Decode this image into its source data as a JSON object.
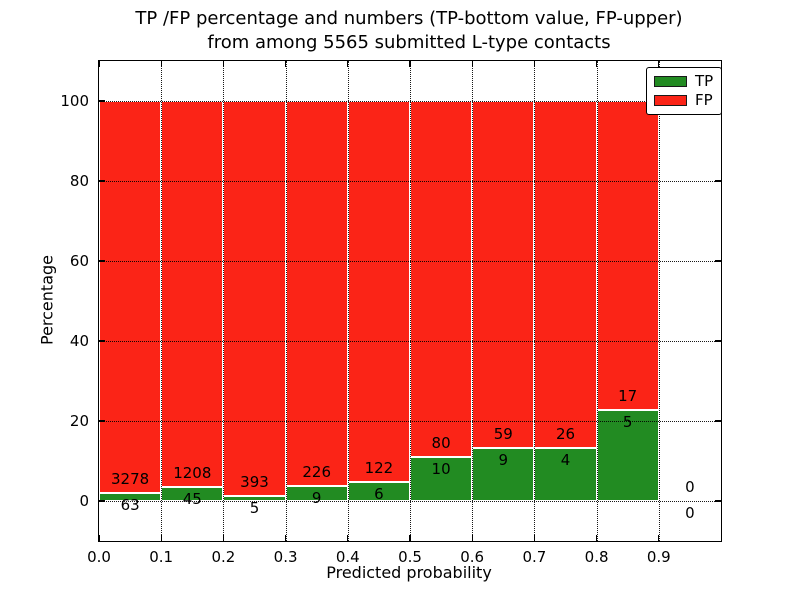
{
  "figure": {
    "title_line1": "TP /FP percentage and numbers (TP-bottom value, FP-upper)",
    "title_line2": "from among 5565 submitted L-type contacts",
    "xlabel": "Predicted probability",
    "ylabel": "Percentage",
    "colors": {
      "tp": "#228b22",
      "fp": "#fb2417",
      "grid": "#000000",
      "frame": "#000000",
      "background": "#ffffff"
    }
  },
  "chart_data": {
    "type": "bar",
    "stacked": true,
    "title": "TP /FP percentage and numbers (TP-bottom value, FP-upper) from among 5565 submitted L-type contacts",
    "total_contacts": 5565,
    "xlabel": "Predicted probability",
    "ylabel": "Percentage",
    "xlim": [
      0.0,
      1.0
    ],
    "ylim": [
      -10,
      110
    ],
    "xticks": [
      "0.0",
      "0.1",
      "0.2",
      "0.3",
      "0.4",
      "0.5",
      "0.6",
      "0.7",
      "0.8",
      "0.9"
    ],
    "yticks": [
      0,
      20,
      40,
      60,
      80,
      100
    ],
    "grid": "dotted",
    "legend_position": "upper right",
    "legend": [
      {
        "label": "TP",
        "color": "#228b22"
      },
      {
        "label": "FP",
        "color": "#fb2417"
      }
    ],
    "categories": [
      "0.0-0.1",
      "0.1-0.2",
      "0.2-0.3",
      "0.3-0.4",
      "0.4-0.5",
      "0.5-0.6",
      "0.6-0.7",
      "0.7-0.8",
      "0.8-0.9",
      "0.9-1.0"
    ],
    "series": [
      {
        "name": "TP",
        "color": "#228b22",
        "counts": [
          63,
          45,
          5,
          9,
          6,
          10,
          9,
          4,
          5,
          0
        ],
        "percent": [
          1.89,
          3.59,
          1.26,
          3.83,
          4.69,
          11.11,
          13.24,
          13.33,
          22.73,
          0
        ]
      },
      {
        "name": "FP",
        "color": "#fb2417",
        "counts": [
          3278,
          1208,
          393,
          226,
          122,
          80,
          59,
          26,
          17,
          0
        ],
        "percent": [
          98.11,
          96.41,
          98.74,
          96.17,
          95.31,
          88.89,
          86.76,
          86.67,
          77.27,
          0
        ]
      }
    ],
    "bins": [
      {
        "range": "0.0-0.1",
        "x0": 0.0,
        "x1": 0.1,
        "tp": "63",
        "fp": "3278",
        "tp_pct": 1.89
      },
      {
        "range": "0.1-0.2",
        "x0": 0.1,
        "x1": 0.2,
        "tp": "45",
        "fp": "1208",
        "tp_pct": 3.59
      },
      {
        "range": "0.2-0.3",
        "x0": 0.2,
        "x1": 0.3,
        "tp": "5",
        "fp": "393",
        "tp_pct": 1.26
      },
      {
        "range": "0.3-0.4",
        "x0": 0.3,
        "x1": 0.4,
        "tp": "9",
        "fp": "226",
        "tp_pct": 3.83
      },
      {
        "range": "0.4-0.5",
        "x0": 0.4,
        "x1": 0.5,
        "tp": "6",
        "fp": "122",
        "tp_pct": 4.69
      },
      {
        "range": "0.5-0.6",
        "x0": 0.5,
        "x1": 0.6,
        "tp": "10",
        "fp": "80",
        "tp_pct": 11.11
      },
      {
        "range": "0.6-0.7",
        "x0": 0.6,
        "x1": 0.7,
        "tp": "9",
        "fp": "59",
        "tp_pct": 13.24
      },
      {
        "range": "0.7-0.8",
        "x0": 0.7,
        "x1": 0.8,
        "tp": "4",
        "fp": "26",
        "tp_pct": 13.33
      },
      {
        "range": "0.8-0.9",
        "x0": 0.8,
        "x1": 0.9,
        "tp": "5",
        "fp": "17",
        "tp_pct": 22.73
      },
      {
        "range": "0.9-1.0",
        "x0": 0.9,
        "x1": 1.0,
        "tp": "0",
        "fp": "0",
        "tp_pct": 0,
        "empty": true
      }
    ]
  }
}
